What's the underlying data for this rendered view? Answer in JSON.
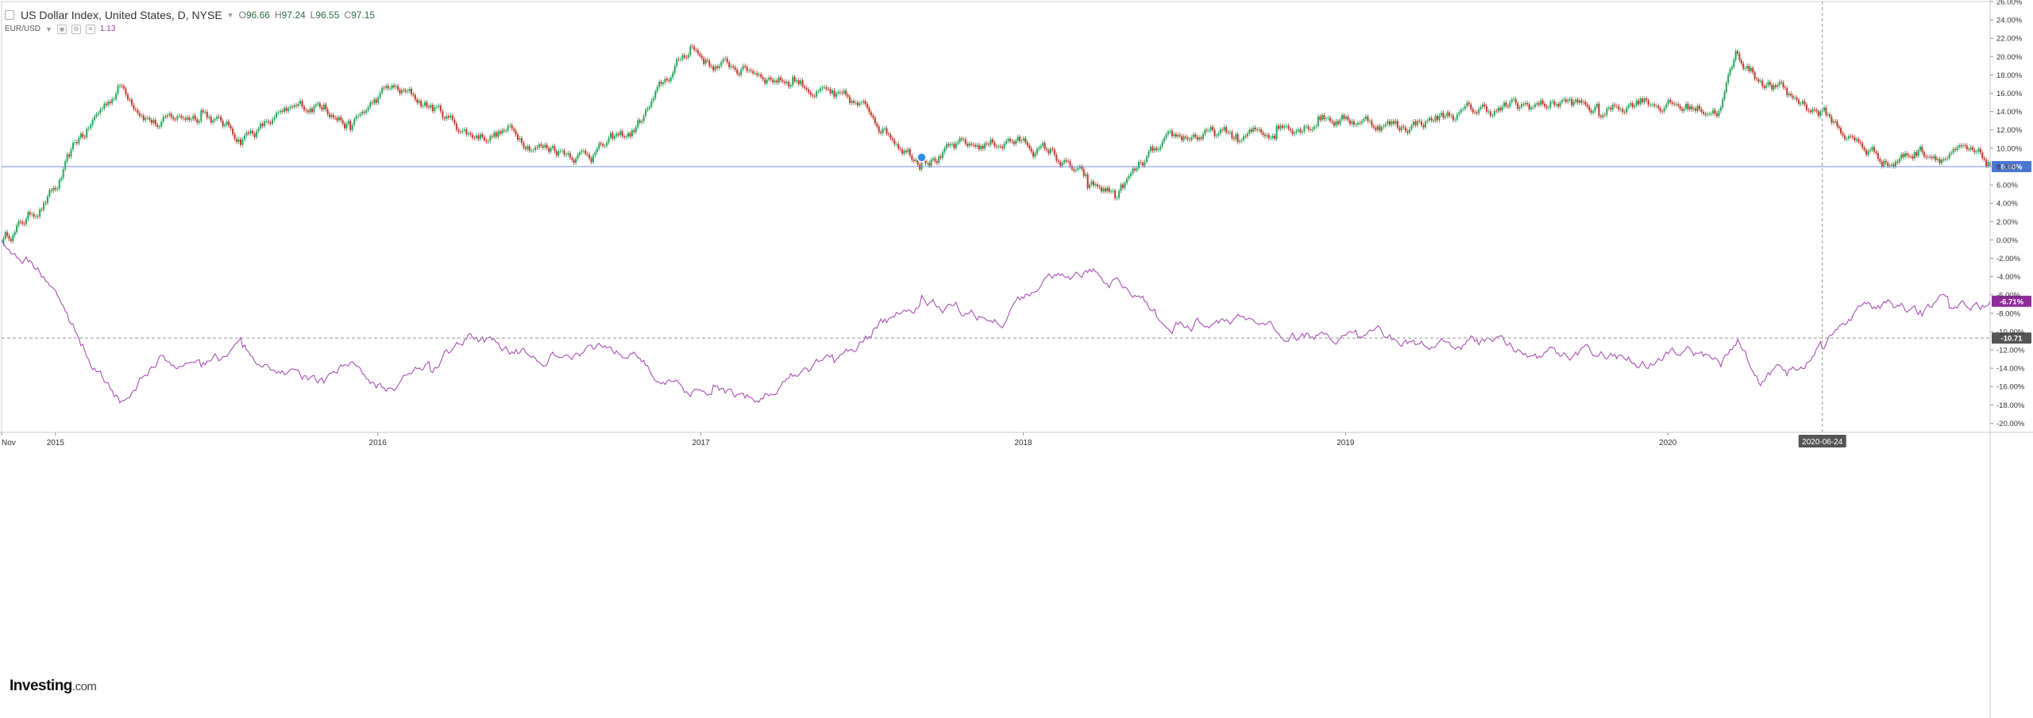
{
  "legend": {
    "title": "US Dollar Index, United States, D, NYSE",
    "ohlc": [
      {
        "label": "O",
        "value": "96.66"
      },
      {
        "label": "H",
        "value": "97.24"
      },
      {
        "label": "L",
        "value": "96.55"
      },
      {
        "label": "C",
        "value": "97.15"
      }
    ],
    "comparison": {
      "symbol": "EUR/USD",
      "value": "1.13"
    }
  },
  "logo": {
    "text": "Investing",
    "suffix": ".com"
  },
  "colors": {
    "candle_up": "#26a65b",
    "candle_down": "#c0392b",
    "comparison_line": "#a84fb4",
    "crosshair": "#999999",
    "baseline": "#6f8fd8",
    "badge_blue": "#4a76d4",
    "badge_purple": "#8e2a9a",
    "badge_dark": "#555555",
    "grid": "#eeeeee"
  },
  "chart_data": {
    "type": "line",
    "title": "US Dollar Index, United States, D, NYSE",
    "xlabel": "",
    "ylabel": "",
    "yunit": "%",
    "ylim": [
      -21,
      26
    ],
    "y_ticks": [
      "26.00%",
      "24.00%",
      "22.00%",
      "20.00%",
      "18.00%",
      "16.00%",
      "14.00%",
      "12.00%",
      "10.00%",
      "8.00%",
      "6.00%",
      "4.00%",
      "2.00%",
      "0.00%",
      "-2.00%",
      "-4.00%",
      "-6.00%",
      "-8.00%",
      "-10.00%",
      "-12.00%",
      "-14.00%",
      "-16.00%",
      "-18.00%",
      "-20.00%"
    ],
    "x_ticks": [
      "Nov",
      "2015",
      "2016",
      "2017",
      "2018",
      "2019",
      "2020"
    ],
    "xlim": [
      "2014-11-01",
      "2020-12-31"
    ],
    "crosshair": {
      "x": "2020-06-24",
      "y": "-10.71"
    },
    "badges": {
      "usd_last": "8.00%",
      "eur_last": "-6.71%"
    },
    "series": [
      {
        "name": "US Dollar Index",
        "style": "candlestick",
        "x": [
          "2014-11-01",
          "2014-12-01",
          "2015-01-01",
          "2015-02-01",
          "2015-03-15",
          "2015-05-01",
          "2015-06-15",
          "2015-08-01",
          "2015-09-15",
          "2015-11-01",
          "2015-12-01",
          "2016-01-15",
          "2016-03-01",
          "2016-04-15",
          "2016-06-01",
          "2016-07-15",
          "2016-09-01",
          "2016-10-15",
          "2016-12-20",
          "2017-01-15",
          "2017-03-01",
          "2017-04-15",
          "2017-06-01",
          "2017-07-15",
          "2017-09-08",
          "2017-11-01",
          "2017-12-15",
          "2018-02-01",
          "2018-03-15",
          "2018-04-15",
          "2018-06-01",
          "2018-07-15",
          "2018-09-01",
          "2018-10-15",
          "2018-12-01",
          "2019-01-15",
          "2019-03-01",
          "2019-04-15",
          "2019-06-01",
          "2019-07-15",
          "2019-09-01",
          "2019-10-15",
          "2019-12-01",
          "2020-01-15",
          "2020-03-01",
          "2020-03-20",
          "2020-04-15",
          "2020-05-15",
          "2020-06-24",
          "2020-07-15",
          "2020-08-15",
          "2020-09-15",
          "2020-10-15",
          "2020-11-15",
          "2020-12-31"
        ],
        "values": [
          0.0,
          2.5,
          5.5,
          11.5,
          17.0,
          12.5,
          14.0,
          11.0,
          13.5,
          15.0,
          12.5,
          16.5,
          14.5,
          11.5,
          12.0,
          10.0,
          9.5,
          11.5,
          21.0,
          19.0,
          18.5,
          17.5,
          15.5,
          13.5,
          9.0,
          10.0,
          11.0,
          9.5,
          6.0,
          5.0,
          9.5,
          11.5,
          11.0,
          12.0,
          13.5,
          13.0,
          12.5,
          13.5,
          14.0,
          14.5,
          15.0,
          14.0,
          15.5,
          14.5,
          14.5,
          20.5,
          17.5,
          16.0,
          14.0,
          12.0,
          9.5,
          8.5,
          10.0,
          9.5,
          8.0
        ]
      },
      {
        "name": "EUR/USD",
        "style": "line",
        "x": [
          "2014-11-01",
          "2014-12-01",
          "2015-01-01",
          "2015-02-01",
          "2015-03-15",
          "2015-05-01",
          "2015-06-15",
          "2015-08-01",
          "2015-09-15",
          "2015-11-01",
          "2015-12-01",
          "2016-01-15",
          "2016-03-01",
          "2016-04-15",
          "2016-06-01",
          "2016-07-15",
          "2016-09-01",
          "2016-10-15",
          "2016-12-20",
          "2017-01-15",
          "2017-03-01",
          "2017-04-15",
          "2017-06-01",
          "2017-07-15",
          "2017-09-08",
          "2017-11-01",
          "2017-12-15",
          "2018-02-01",
          "2018-03-15",
          "2018-04-15",
          "2018-06-01",
          "2018-07-15",
          "2018-09-01",
          "2018-10-15",
          "2018-12-01",
          "2019-01-15",
          "2019-03-01",
          "2019-04-15",
          "2019-06-01",
          "2019-07-15",
          "2019-09-01",
          "2019-10-15",
          "2019-12-01",
          "2020-01-15",
          "2020-03-01",
          "2020-03-20",
          "2020-04-15",
          "2020-05-15",
          "2020-06-24",
          "2020-07-15",
          "2020-08-15",
          "2020-09-15",
          "2020-10-15",
          "2020-11-15",
          "2020-12-31"
        ],
        "values": [
          0.0,
          -2.0,
          -5.5,
          -11.5,
          -17.5,
          -13.0,
          -14.0,
          -12.0,
          -14.5,
          -15.5,
          -13.5,
          -16.5,
          -14.0,
          -10.5,
          -12.0,
          -12.5,
          -11.5,
          -12.0,
          -17.5,
          -16.0,
          -17.5,
          -15.0,
          -13.0,
          -10.0,
          -6.5,
          -8.0,
          -8.5,
          -4.0,
          -3.5,
          -4.5,
          -8.0,
          -9.0,
          -8.5,
          -10.0,
          -10.5,
          -10.5,
          -11.0,
          -11.5,
          -11.0,
          -12.0,
          -13.0,
          -12.5,
          -13.5,
          -12.5,
          -13.5,
          -11.0,
          -15.5,
          -14.5,
          -11.5,
          -9.0,
          -7.0,
          -7.5,
          -8.0,
          -7.0,
          -6.7
        ]
      }
    ]
  }
}
